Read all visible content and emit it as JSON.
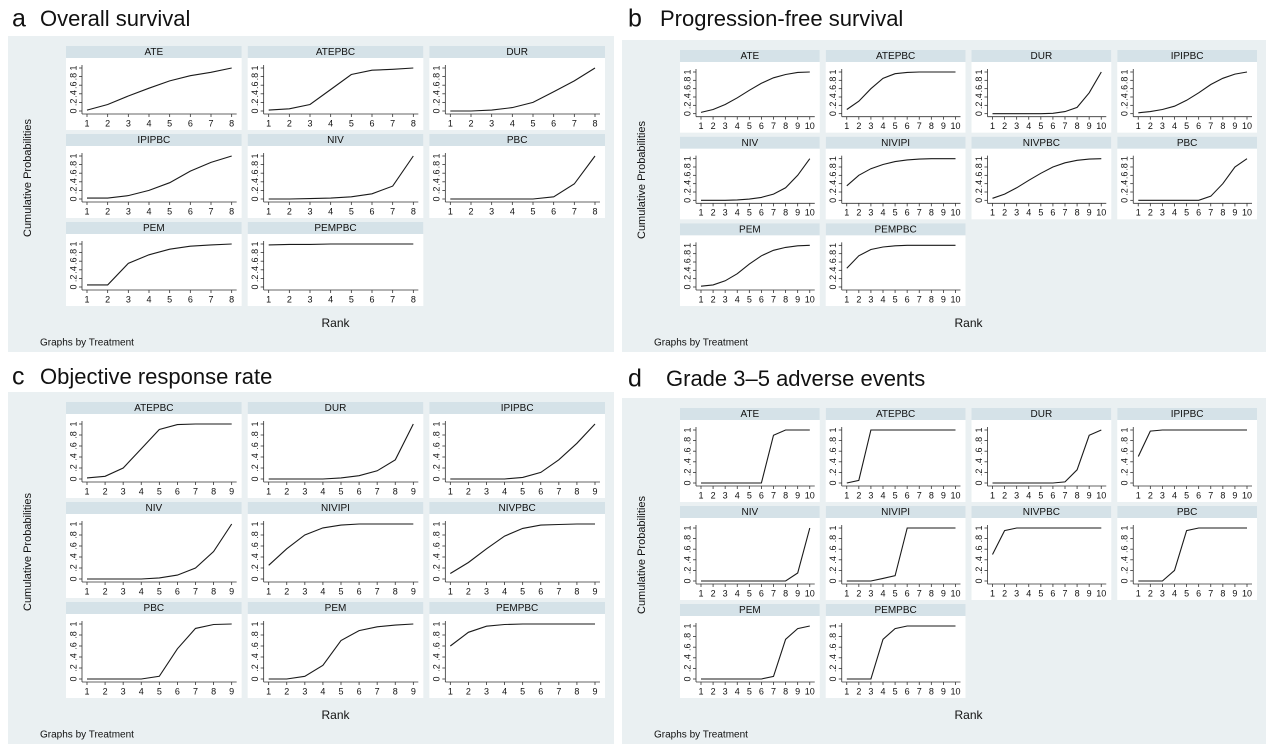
{
  "chart_data": [
    {
      "type": "line",
      "label": "a",
      "title": "Overall survival",
      "ylabel": "Cumulative Probabilities",
      "xlabel": "Rank",
      "note": "Graphs by Treatment",
      "color": "#1a1a1a",
      "x": [
        1,
        2,
        3,
        4,
        5,
        6,
        7,
        8
      ],
      "xlim": [
        1,
        8
      ],
      "xticks": [
        1,
        2,
        3,
        4,
        5,
        6,
        7,
        8
      ],
      "ylim": [
        0,
        1
      ],
      "yticks": [
        0,
        {
          "value": 0.2,
          "label": ".2"
        },
        {
          "value": 0.4,
          "label": ".4"
        },
        {
          "value": 0.6,
          "label": ".6"
        },
        {
          "value": 0.8,
          "label": ".8"
        },
        1
      ],
      "series": [
        {
          "name": "ATE",
          "values": [
            0.02,
            0.15,
            0.35,
            0.53,
            0.7,
            0.82,
            0.9,
            1
          ]
        },
        {
          "name": "ATEPBC",
          "values": [
            0.02,
            0.05,
            0.15,
            0.5,
            0.85,
            0.95,
            0.97,
            1
          ]
        },
        {
          "name": "DUR",
          "values": [
            0,
            0,
            0.02,
            0.08,
            0.2,
            0.45,
            0.7,
            1
          ]
        },
        {
          "name": "IPIPBC",
          "values": [
            0.02,
            0.02,
            0.08,
            0.2,
            0.38,
            0.65,
            0.85,
            1
          ]
        },
        {
          "name": "NIV",
          "values": [
            0,
            0,
            0.01,
            0.02,
            0.05,
            0.12,
            0.3,
            1
          ]
        },
        {
          "name": "PBC",
          "values": [
            0,
            0,
            0,
            0,
            0,
            0.05,
            0.35,
            1
          ]
        },
        {
          "name": "PEM",
          "values": [
            0.05,
            0.05,
            0.55,
            0.75,
            0.88,
            0.95,
            0.98,
            1
          ]
        },
        {
          "name": "PEMPBC",
          "values": [
            0.98,
            0.99,
            0.99,
            1,
            1,
            1,
            1,
            1
          ]
        }
      ]
    },
    {
      "type": "line",
      "label": "b",
      "title": "Progression-free survival",
      "ylabel": "Cumulative Probabilities",
      "xlabel": "Rank",
      "note": "Graphs by Treatment",
      "color": "#1a1a1a",
      "x": [
        1,
        2,
        3,
        4,
        5,
        6,
        7,
        8,
        9,
        10
      ],
      "xlim": [
        1,
        10
      ],
      "xticks": [
        1,
        2,
        3,
        4,
        5,
        6,
        7,
        8,
        9,
        10
      ],
      "ylim": [
        0,
        1
      ],
      "yticks": [
        0,
        {
          "value": 0.2,
          "label": ".2"
        },
        {
          "value": 0.4,
          "label": ".4"
        },
        {
          "value": 0.6,
          "label": ".6"
        },
        {
          "value": 0.8,
          "label": ".8"
        },
        1
      ],
      "series": [
        {
          "name": "ATE",
          "values": [
            0.03,
            0.1,
            0.22,
            0.38,
            0.56,
            0.73,
            0.86,
            0.94,
            0.99,
            1
          ]
        },
        {
          "name": "ATEPBC",
          "values": [
            0.1,
            0.3,
            0.6,
            0.85,
            0.96,
            0.99,
            1,
            1,
            1,
            1
          ]
        },
        {
          "name": "DUR",
          "values": [
            0,
            0,
            0,
            0,
            0,
            0.01,
            0.05,
            0.15,
            0.5,
            1
          ]
        },
        {
          "name": "IPIPBC",
          "values": [
            0.02,
            0.05,
            0.1,
            0.18,
            0.32,
            0.5,
            0.7,
            0.85,
            0.95,
            1
          ]
        },
        {
          "name": "NIV",
          "values": [
            0,
            0,
            0,
            0.01,
            0.03,
            0.07,
            0.15,
            0.3,
            0.6,
            1
          ]
        },
        {
          "name": "NIVIPI",
          "values": [
            0.35,
            0.6,
            0.76,
            0.86,
            0.93,
            0.97,
            0.99,
            1,
            1,
            1
          ]
        },
        {
          "name": "NIVPBC",
          "values": [
            0.05,
            0.15,
            0.3,
            0.48,
            0.65,
            0.8,
            0.9,
            0.96,
            0.99,
            1
          ]
        },
        {
          "name": "PBC",
          "values": [
            0,
            0,
            0,
            0,
            0,
            0,
            0.1,
            0.4,
            0.8,
            1
          ]
        },
        {
          "name": "PEM",
          "values": [
            0.02,
            0.05,
            0.15,
            0.32,
            0.55,
            0.75,
            0.88,
            0.95,
            0.99,
            1
          ]
        },
        {
          "name": "PEMPBC",
          "values": [
            0.45,
            0.75,
            0.9,
            0.96,
            0.99,
            1,
            1,
            1,
            1,
            1
          ]
        }
      ]
    },
    {
      "type": "line",
      "label": "c",
      "title": "Objective response rate",
      "ylabel": "Cumulative Probabilities",
      "xlabel": "Rank",
      "note": "Graphs by Treatment",
      "color": "#1a1a1a",
      "x": [
        1,
        2,
        3,
        4,
        5,
        6,
        7,
        8,
        9
      ],
      "xlim": [
        1,
        9
      ],
      "xticks": [
        1,
        2,
        3,
        4,
        5,
        6,
        7,
        8,
        9
      ],
      "ylim": [
        0,
        1
      ],
      "yticks": [
        0,
        {
          "value": 0.2,
          "label": ".2"
        },
        {
          "value": 0.4,
          "label": ".4"
        },
        {
          "value": 0.6,
          "label": ".6"
        },
        {
          "value": 0.8,
          "label": ".8"
        },
        1
      ],
      "series": [
        {
          "name": "ATEPBC",
          "values": [
            0.02,
            0.05,
            0.2,
            0.55,
            0.9,
            0.99,
            1,
            1,
            1
          ]
        },
        {
          "name": "DUR",
          "values": [
            0,
            0,
            0,
            0,
            0.02,
            0.06,
            0.15,
            0.35,
            1
          ]
        },
        {
          "name": "IPIPBC",
          "values": [
            0,
            0,
            0,
            0,
            0.03,
            0.12,
            0.35,
            0.65,
            1
          ]
        },
        {
          "name": "NIV",
          "values": [
            0,
            0,
            0,
            0,
            0.02,
            0.07,
            0.2,
            0.5,
            1
          ]
        },
        {
          "name": "NIVIPI",
          "values": [
            0.25,
            0.55,
            0.8,
            0.93,
            0.98,
            1,
            1,
            1,
            1
          ]
        },
        {
          "name": "NIVPBC",
          "values": [
            0.1,
            0.3,
            0.55,
            0.78,
            0.92,
            0.98,
            0.99,
            1,
            1
          ]
        },
        {
          "name": "PBC",
          "values": [
            0,
            0,
            0,
            0,
            0.05,
            0.55,
            0.92,
            0.99,
            1
          ]
        },
        {
          "name": "PEM",
          "values": [
            0,
            0,
            0.05,
            0.25,
            0.7,
            0.88,
            0.95,
            0.98,
            1
          ]
        },
        {
          "name": "PEMPBC",
          "values": [
            0.6,
            0.85,
            0.96,
            0.99,
            1,
            1,
            1,
            1,
            1
          ]
        }
      ]
    },
    {
      "type": "line",
      "label": "d",
      "title": "Grade 3–5 adverse events",
      "ylabel": "Cumulative Probabilities",
      "xlabel": "Rank",
      "note": "Graphs by Treatment",
      "color": "#1a1a1a",
      "x": [
        1,
        2,
        3,
        4,
        5,
        6,
        7,
        8,
        9,
        10
      ],
      "xlim": [
        1,
        10
      ],
      "xticks": [
        1,
        2,
        3,
        4,
        5,
        6,
        7,
        8,
        9,
        10
      ],
      "ylim": [
        0,
        1
      ],
      "yticks": [
        0,
        {
          "value": 0.2,
          "label": ".2"
        },
        {
          "value": 0.4,
          "label": ".4"
        },
        {
          "value": 0.6,
          "label": ".6"
        },
        {
          "value": 0.8,
          "label": ".8"
        },
        1
      ],
      "series": [
        {
          "name": "ATE",
          "values": [
            0,
            0,
            0,
            0,
            0,
            0,
            0.9,
            1,
            1,
            1
          ]
        },
        {
          "name": "ATEPBC",
          "values": [
            0,
            0.05,
            1,
            1,
            1,
            1,
            1,
            1,
            1,
            1
          ]
        },
        {
          "name": "DUR",
          "values": [
            0,
            0,
            0,
            0,
            0,
            0,
            0.02,
            0.25,
            0.9,
            1
          ]
        },
        {
          "name": "IPIPBC",
          "values": [
            0.5,
            0.98,
            1,
            1,
            1,
            1,
            1,
            1,
            1,
            1
          ]
        },
        {
          "name": "NIV",
          "values": [
            0,
            0,
            0,
            0,
            0,
            0,
            0,
            0,
            0.15,
            1
          ]
        },
        {
          "name": "NIVIPI",
          "values": [
            0,
            0,
            0,
            0.05,
            0.1,
            1,
            1,
            1,
            1,
            1
          ]
        },
        {
          "name": "NIVPBC",
          "values": [
            0.5,
            0.95,
            1,
            1,
            1,
            1,
            1,
            1,
            1,
            1
          ]
        },
        {
          "name": "PBC",
          "values": [
            0,
            0,
            0,
            0.2,
            0.95,
            1,
            1,
            1,
            1,
            1
          ]
        },
        {
          "name": "PEM",
          "values": [
            0,
            0,
            0,
            0,
            0,
            0,
            0.05,
            0.75,
            0.95,
            1
          ]
        },
        {
          "name": "PEMPBC",
          "values": [
            0,
            0,
            0,
            0.75,
            0.95,
            1,
            1,
            1,
            1,
            1
          ]
        }
      ]
    }
  ]
}
